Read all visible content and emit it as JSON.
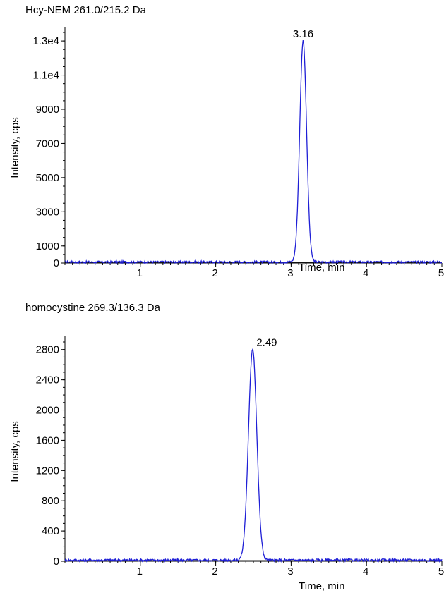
{
  "chart_data": [
    {
      "type": "line",
      "title": "Hcy-NEM 261.0/215.2 Da",
      "xlabel": "Time, min",
      "ylabel": "Intensity, cps",
      "xlim": [
        0,
        5
      ],
      "ylim": [
        0,
        13500
      ],
      "x_ticks": [
        1,
        2,
        3,
        4,
        5
      ],
      "y_ticks": [
        {
          "value": 0,
          "label": "0"
        },
        {
          "value": 1000,
          "label": "1000"
        },
        {
          "value": 3000,
          "label": "3000"
        },
        {
          "value": 5000,
          "label": "5000"
        },
        {
          "value": 7000,
          "label": "7000"
        },
        {
          "value": 9000,
          "label": "9000"
        },
        {
          "value": 11000,
          "label": "1.1e4"
        },
        {
          "value": 13000,
          "label": "1.3e4"
        }
      ],
      "peak": {
        "x": 3.16,
        "y": 13000,
        "width": 0.045,
        "label": "3.16"
      },
      "baseline_level": 60,
      "color": "#1f1fd6",
      "grid": false
    },
    {
      "type": "line",
      "title": "homocystine 269.3/136.3 Da",
      "xlabel": "Time, min",
      "ylabel": "Intensity, cps",
      "xlim": [
        0,
        5
      ],
      "ylim": [
        0,
        2900
      ],
      "x_ticks": [
        1,
        2,
        3,
        4,
        5
      ],
      "y_ticks": [
        {
          "value": 0,
          "label": "0"
        },
        {
          "value": 400,
          "label": "400"
        },
        {
          "value": 800,
          "label": "800"
        },
        {
          "value": 1200,
          "label": "1200"
        },
        {
          "value": 1600,
          "label": "1600"
        },
        {
          "value": 2000,
          "label": "2000"
        },
        {
          "value": 2400,
          "label": "2400"
        },
        {
          "value": 2800,
          "label": "2800"
        }
      ],
      "peak": {
        "x": 2.49,
        "y": 2800,
        "width": 0.055,
        "label": "2.49"
      },
      "baseline_level": 15,
      "color": "#1f1fd6",
      "grid": false
    }
  ]
}
